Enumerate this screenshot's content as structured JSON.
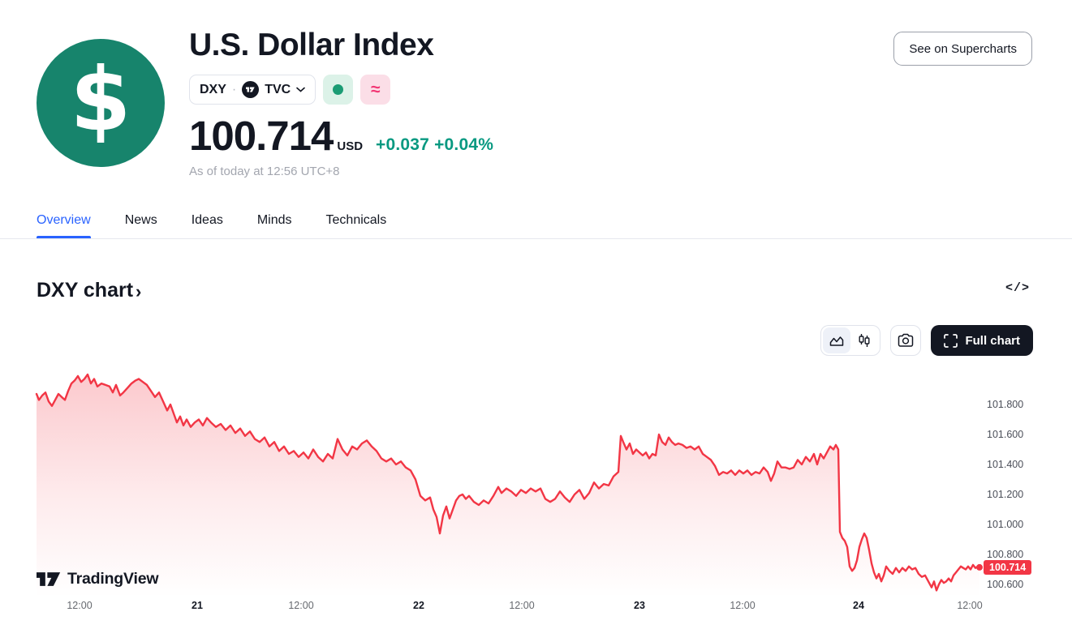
{
  "header": {
    "title": "U.S. Dollar Index",
    "logo_glyph": "$",
    "symbol_button": {
      "symbol": "DXY",
      "separator": "·",
      "exchange": "TVC",
      "exchange_logo": "tradingview-icon"
    },
    "market_status_icon": "market-open-dot-icon",
    "wave_icon_glyph": "≈",
    "price": "100.714",
    "currency": "USD",
    "change": "+0.037",
    "change_percent": "+0.04%",
    "as_of": "As of today at 12:56 UTC+8",
    "supercharts_button_label": "See on Supercharts",
    "colors": {
      "accent_teal": "#17846C",
      "up_green": "#089981",
      "active_blue": "#2962FF",
      "chart_red": "#F23645",
      "pink": "#F23674"
    }
  },
  "tabs": {
    "active": "Overview",
    "items": [
      {
        "label": "Overview"
      },
      {
        "label": "News"
      },
      {
        "label": "Ideas"
      },
      {
        "label": "Minds"
      },
      {
        "label": "Technicals"
      }
    ]
  },
  "section": {
    "heading": "DXY chart",
    "chevron": "›",
    "code_icon_glyph": "</>"
  },
  "chart_controls": {
    "full_chart_label": "Full chart"
  },
  "watermark": {
    "brand": "TradingView"
  },
  "chart_data": {
    "type": "area",
    "symbol": "DXY",
    "title": "DXY chart",
    "line_color": "#F23645",
    "grid": false,
    "legend_position": "none",
    "current_price": 100.714,
    "current_price_label": "100.714",
    "ylim": [
      100.52,
      102.04
    ],
    "y_ticks": [
      {
        "label": "101.800",
        "value": 101.8
      },
      {
        "label": "101.600",
        "value": 101.6
      },
      {
        "label": "101.400",
        "value": 101.4
      },
      {
        "label": "101.200",
        "value": 101.2
      },
      {
        "label": "101.000",
        "value": 101.0
      },
      {
        "label": "100.800",
        "value": 100.8
      },
      {
        "label": "100.600",
        "value": 100.6
      }
    ],
    "x_ticks": [
      {
        "label": "12:00",
        "px": 98,
        "bold": false
      },
      {
        "label": "21",
        "px": 243,
        "bold": true
      },
      {
        "label": "12:00",
        "px": 371,
        "bold": false
      },
      {
        "label": "22",
        "px": 516,
        "bold": true
      },
      {
        "label": "12:00",
        "px": 643,
        "bold": false
      },
      {
        "label": "23",
        "px": 788,
        "bold": true
      },
      {
        "label": "12:00",
        "px": 915,
        "bold": false
      },
      {
        "label": "24",
        "px": 1058,
        "bold": true
      },
      {
        "label": "12:00",
        "px": 1195,
        "bold": false
      }
    ],
    "points": [
      [
        45,
        101.87
      ],
      [
        48,
        101.83
      ],
      [
        52,
        101.86
      ],
      [
        56,
        101.88
      ],
      [
        60,
        101.82
      ],
      [
        64,
        101.79
      ],
      [
        68,
        101.83
      ],
      [
        72,
        101.87
      ],
      [
        76,
        101.85
      ],
      [
        80,
        101.83
      ],
      [
        84,
        101.89
      ],
      [
        88,
        101.94
      ],
      [
        92,
        101.96
      ],
      [
        96,
        101.99
      ],
      [
        100,
        101.95
      ],
      [
        104,
        101.97
      ],
      [
        108,
        102.0
      ],
      [
        112,
        101.94
      ],
      [
        116,
        101.97
      ],
      [
        120,
        101.92
      ],
      [
        125,
        101.94
      ],
      [
        130,
        101.93
      ],
      [
        135,
        101.92
      ],
      [
        139,
        101.88
      ],
      [
        143,
        101.93
      ],
      [
        148,
        101.86
      ],
      [
        152,
        101.88
      ],
      [
        157,
        101.91
      ],
      [
        162,
        101.94
      ],
      [
        167,
        101.96
      ],
      [
        171,
        101.97
      ],
      [
        176,
        101.95
      ],
      [
        181,
        101.93
      ],
      [
        186,
        101.89
      ],
      [
        191,
        101.85
      ],
      [
        196,
        101.88
      ],
      [
        201,
        101.82
      ],
      [
        206,
        101.76
      ],
      [
        210,
        101.8
      ],
      [
        214,
        101.74
      ],
      [
        218,
        101.68
      ],
      [
        222,
        101.72
      ],
      [
        226,
        101.66
      ],
      [
        230,
        101.7
      ],
      [
        235,
        101.65
      ],
      [
        240,
        101.68
      ],
      [
        245,
        101.7
      ],
      [
        250,
        101.66
      ],
      [
        255,
        101.71
      ],
      [
        260,
        101.68
      ],
      [
        266,
        101.65
      ],
      [
        272,
        101.67
      ],
      [
        278,
        101.63
      ],
      [
        284,
        101.66
      ],
      [
        290,
        101.61
      ],
      [
        296,
        101.64
      ],
      [
        302,
        101.59
      ],
      [
        308,
        101.62
      ],
      [
        314,
        101.57
      ],
      [
        320,
        101.55
      ],
      [
        326,
        101.58
      ],
      [
        332,
        101.52
      ],
      [
        338,
        101.55
      ],
      [
        344,
        101.49
      ],
      [
        350,
        101.52
      ],
      [
        356,
        101.47
      ],
      [
        362,
        101.49
      ],
      [
        368,
        101.45
      ],
      [
        374,
        101.48
      ],
      [
        380,
        101.44
      ],
      [
        386,
        101.5
      ],
      [
        392,
        101.45
      ],
      [
        398,
        101.42
      ],
      [
        404,
        101.47
      ],
      [
        410,
        101.44
      ],
      [
        416,
        101.57
      ],
      [
        422,
        101.5
      ],
      [
        428,
        101.46
      ],
      [
        434,
        101.52
      ],
      [
        440,
        101.5
      ],
      [
        446,
        101.54
      ],
      [
        452,
        101.56
      ],
      [
        458,
        101.52
      ],
      [
        464,
        101.49
      ],
      [
        470,
        101.44
      ],
      [
        476,
        101.42
      ],
      [
        482,
        101.44
      ],
      [
        488,
        101.4
      ],
      [
        494,
        101.42
      ],
      [
        500,
        101.38
      ],
      [
        506,
        101.36
      ],
      [
        512,
        101.3
      ],
      [
        518,
        101.19
      ],
      [
        524,
        101.16
      ],
      [
        530,
        101.18
      ],
      [
        534,
        101.1
      ],
      [
        538,
        101.05
      ],
      [
        542,
        100.94
      ],
      [
        546,
        101.06
      ],
      [
        550,
        101.12
      ],
      [
        554,
        101.04
      ],
      [
        558,
        101.1
      ],
      [
        562,
        101.16
      ],
      [
        566,
        101.19
      ],
      [
        570,
        101.2
      ],
      [
        574,
        101.17
      ],
      [
        578,
        101.19
      ],
      [
        584,
        101.15
      ],
      [
        590,
        101.13
      ],
      [
        596,
        101.16
      ],
      [
        602,
        101.14
      ],
      [
        608,
        101.19
      ],
      [
        614,
        101.25
      ],
      [
        618,
        101.21
      ],
      [
        624,
        101.24
      ],
      [
        630,
        101.22
      ],
      [
        636,
        101.19
      ],
      [
        642,
        101.23
      ],
      [
        648,
        101.21
      ],
      [
        654,
        101.24
      ],
      [
        660,
        101.22
      ],
      [
        666,
        101.24
      ],
      [
        672,
        101.17
      ],
      [
        678,
        101.15
      ],
      [
        684,
        101.17
      ],
      [
        690,
        101.22
      ],
      [
        696,
        101.18
      ],
      [
        702,
        101.15
      ],
      [
        708,
        101.2
      ],
      [
        714,
        101.23
      ],
      [
        720,
        101.17
      ],
      [
        726,
        101.21
      ],
      [
        732,
        101.28
      ],
      [
        738,
        101.24
      ],
      [
        744,
        101.27
      ],
      [
        750,
        101.26
      ],
      [
        756,
        101.32
      ],
      [
        762,
        101.35
      ],
      [
        765,
        101.59
      ],
      [
        768,
        101.55
      ],
      [
        772,
        101.5
      ],
      [
        776,
        101.54
      ],
      [
        780,
        101.47
      ],
      [
        784,
        101.5
      ],
      [
        788,
        101.48
      ],
      [
        792,
        101.46
      ],
      [
        796,
        101.48
      ],
      [
        800,
        101.44
      ],
      [
        804,
        101.47
      ],
      [
        808,
        101.46
      ],
      [
        812,
        101.6
      ],
      [
        816,
        101.55
      ],
      [
        820,
        101.53
      ],
      [
        824,
        101.58
      ],
      [
        828,
        101.55
      ],
      [
        832,
        101.53
      ],
      [
        836,
        101.54
      ],
      [
        841,
        101.53
      ],
      [
        846,
        101.51
      ],
      [
        851,
        101.52
      ],
      [
        856,
        101.5
      ],
      [
        861,
        101.52
      ],
      [
        866,
        101.47
      ],
      [
        871,
        101.45
      ],
      [
        876,
        101.43
      ],
      [
        881,
        101.39
      ],
      [
        886,
        101.33
      ],
      [
        891,
        101.35
      ],
      [
        896,
        101.34
      ],
      [
        901,
        101.36
      ],
      [
        906,
        101.33
      ],
      [
        911,
        101.36
      ],
      [
        916,
        101.34
      ],
      [
        921,
        101.36
      ],
      [
        926,
        101.33
      ],
      [
        931,
        101.35
      ],
      [
        936,
        101.34
      ],
      [
        941,
        101.38
      ],
      [
        946,
        101.35
      ],
      [
        950,
        101.29
      ],
      [
        954,
        101.34
      ],
      [
        958,
        101.42
      ],
      [
        963,
        101.38
      ],
      [
        968,
        101.38
      ],
      [
        973,
        101.37
      ],
      [
        978,
        101.38
      ],
      [
        983,
        101.43
      ],
      [
        988,
        101.4
      ],
      [
        993,
        101.45
      ],
      [
        998,
        101.42
      ],
      [
        1003,
        101.47
      ],
      [
        1007,
        101.4
      ],
      [
        1011,
        101.47
      ],
      [
        1015,
        101.44
      ],
      [
        1019,
        101.48
      ],
      [
        1023,
        101.52
      ],
      [
        1027,
        101.5
      ],
      [
        1030,
        101.53
      ],
      [
        1033,
        101.5
      ],
      [
        1035,
        100.95
      ],
      [
        1038,
        100.91
      ],
      [
        1041,
        100.89
      ],
      [
        1044,
        100.85
      ],
      [
        1047,
        100.72
      ],
      [
        1050,
        100.69
      ],
      [
        1053,
        100.71
      ],
      [
        1056,
        100.76
      ],
      [
        1059,
        100.85
      ],
      [
        1062,
        100.9
      ],
      [
        1065,
        100.94
      ],
      [
        1068,
        100.91
      ],
      [
        1071,
        100.83
      ],
      [
        1074,
        100.74
      ],
      [
        1077,
        100.68
      ],
      [
        1080,
        100.64
      ],
      [
        1083,
        100.67
      ],
      [
        1086,
        100.62
      ],
      [
        1089,
        100.66
      ],
      [
        1092,
        100.72
      ],
      [
        1096,
        100.69
      ],
      [
        1100,
        100.67
      ],
      [
        1104,
        100.71
      ],
      [
        1108,
        100.68
      ],
      [
        1112,
        100.71
      ],
      [
        1116,
        100.69
      ],
      [
        1120,
        100.72
      ],
      [
        1124,
        100.7
      ],
      [
        1128,
        100.71
      ],
      [
        1132,
        100.67
      ],
      [
        1136,
        100.65
      ],
      [
        1140,
        100.66
      ],
      [
        1144,
        100.62
      ],
      [
        1148,
        100.58
      ],
      [
        1151,
        100.62
      ],
      [
        1154,
        100.56
      ],
      [
        1157,
        100.6
      ],
      [
        1160,
        100.63
      ],
      [
        1163,
        100.61
      ],
      [
        1166,
        100.62
      ],
      [
        1169,
        100.64
      ],
      [
        1172,
        100.62
      ],
      [
        1175,
        100.66
      ],
      [
        1178,
        100.68
      ],
      [
        1181,
        100.7
      ],
      [
        1184,
        100.72
      ],
      [
        1187,
        100.71
      ],
      [
        1190,
        100.7
      ],
      [
        1193,
        100.72
      ],
      [
        1196,
        100.7
      ],
      [
        1199,
        100.73
      ],
      [
        1202,
        100.71
      ],
      [
        1205,
        100.72
      ],
      [
        1207,
        100.714
      ]
    ]
  }
}
